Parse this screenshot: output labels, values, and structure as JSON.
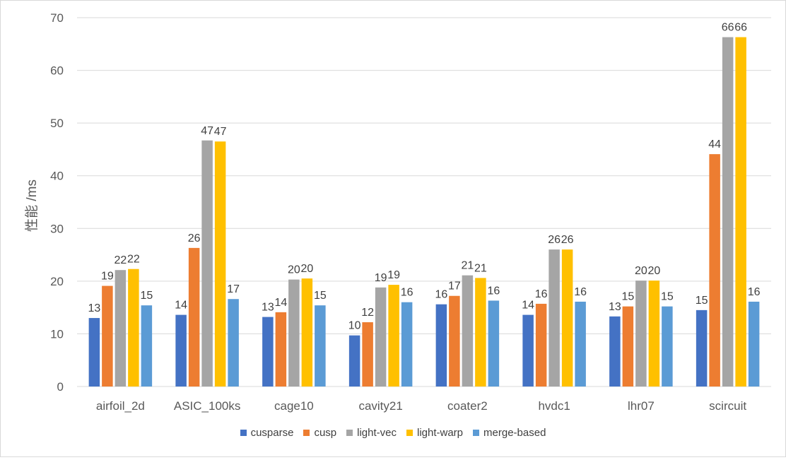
{
  "chart_data": {
    "type": "bar",
    "title": "",
    "xlabel": "",
    "ylabel": "性能 /ms",
    "ylim": [
      0,
      70
    ],
    "yticks": [
      0,
      10,
      20,
      30,
      40,
      50,
      60,
      70
    ],
    "grid": true,
    "legend_position": "bottom",
    "categories": [
      "airfoil_2d",
      "ASIC_100ks",
      "cage10",
      "cavity21",
      "coater2",
      "hvdc1",
      "lhr07",
      "scircuit"
    ],
    "series": [
      {
        "name": "cusparse",
        "color": "#4472c4",
        "values": [
          13.0,
          13.6,
          13.2,
          9.7,
          15.6,
          13.6,
          13.3,
          14.5
        ],
        "labels": [
          "13",
          "14",
          "13",
          "10",
          "16",
          "14",
          "13",
          "15"
        ]
      },
      {
        "name": "cusp",
        "color": "#ed7d31",
        "values": [
          19.1,
          26.3,
          14.1,
          12.2,
          17.2,
          15.7,
          15.2,
          44.1
        ],
        "labels": [
          "19",
          "26",
          "14",
          "12",
          "17",
          "16",
          "15",
          "44"
        ]
      },
      {
        "name": "light-vec",
        "color": "#a5a5a5",
        "values": [
          22.1,
          46.7,
          20.3,
          18.8,
          21.1,
          26.0,
          20.1,
          66.3
        ],
        "labels": [
          "22",
          "47",
          "20",
          "19",
          "21",
          "26",
          "20",
          "66"
        ]
      },
      {
        "name": "light-warp",
        "color": "#ffc000",
        "values": [
          22.3,
          46.5,
          20.5,
          19.3,
          20.6,
          26.0,
          20.1,
          66.3
        ],
        "labels": [
          "22",
          "47",
          "20",
          "19",
          "21",
          "26",
          "20",
          "66"
        ]
      },
      {
        "name": "merge-based",
        "color": "#5b9bd5",
        "values": [
          15.4,
          16.6,
          15.4,
          16.0,
          16.3,
          16.1,
          15.2,
          16.1
        ],
        "labels": [
          "15",
          "17",
          "15",
          "16",
          "16",
          "16",
          "15",
          "16"
        ]
      }
    ]
  }
}
